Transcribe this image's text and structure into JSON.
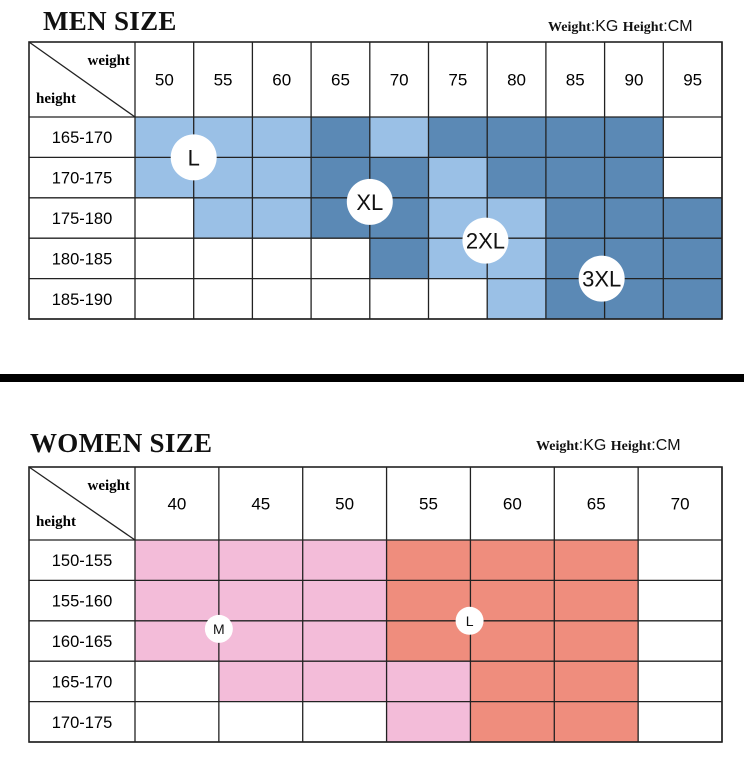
{
  "men": {
    "title": "MEN SIZE",
    "unit_weight_label": "Weight",
    "unit_weight_value": ":KG",
    "unit_height_label": "Height",
    "unit_height_value": ":CM",
    "corner_weight": "weight",
    "corner_height": "height",
    "weights": [
      "50",
      "55",
      "60",
      "65",
      "70",
      "75",
      "80",
      "85",
      "90",
      "95"
    ],
    "heights": [
      "165-170",
      "170-175",
      "175-180",
      "180-185",
      "185-190"
    ],
    "grid": [
      [
        "L",
        "L",
        "L",
        "XL",
        "L",
        "XL",
        "XL",
        "XL",
        "XL",
        ""
      ],
      [
        "L",
        "L",
        "L",
        "XL",
        "XL",
        "L",
        "XL",
        "XL",
        "XL",
        ""
      ],
      [
        "",
        "L",
        "L",
        "XL",
        "XL",
        "L",
        "L",
        "XL",
        "XL",
        "XL"
      ],
      [
        "",
        "",
        "",
        "",
        "XL",
        "L",
        "L",
        "XL",
        "XL",
        "XL"
      ],
      [
        "",
        "",
        "",
        "",
        "",
        "",
        "L",
        "XL",
        "XL",
        "XL"
      ]
    ],
    "size_markers": [
      "L",
      "XL",
      "2XL",
      "3XL"
    ]
  },
  "women": {
    "title": "WOMEN SIZE",
    "unit_weight_label": "Weight",
    "unit_weight_value": ":KG",
    "unit_height_label": "Height",
    "unit_height_value": ":CM",
    "corner_weight": "weight",
    "corner_height": "height",
    "weights": [
      "40",
      "45",
      "50",
      "55",
      "60",
      "65",
      "70"
    ],
    "heights": [
      "150-155",
      "155-160",
      "160-165",
      "165-170",
      "170-175"
    ],
    "grid": [
      [
        "M",
        "M",
        "M",
        "L",
        "L",
        "L",
        ""
      ],
      [
        "M",
        "M",
        "M",
        "L",
        "L",
        "L",
        ""
      ],
      [
        "M",
        "M",
        "M",
        "L",
        "L",
        "L",
        ""
      ],
      [
        "",
        "M",
        "M",
        "M",
        "L",
        "L",
        ""
      ],
      [
        "",
        "",
        "",
        "M",
        "L",
        "L",
        ""
      ]
    ],
    "size_markers": [
      "M",
      "L"
    ]
  },
  "colors": {
    "men_light": "#9ac0e6",
    "men_dark": "#5b89b5",
    "women_light": "#f3bcd9",
    "women_dark": "#ef8d7d",
    "border": "#222222",
    "marker_fill": "#ffffff"
  }
}
